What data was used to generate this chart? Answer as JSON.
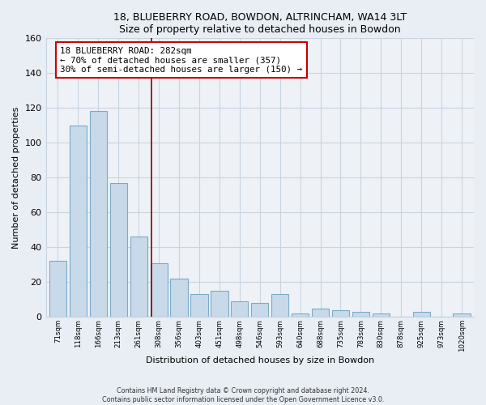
{
  "title1": "18, BLUEBERRY ROAD, BOWDON, ALTRINCHAM, WA14 3LT",
  "title2": "Size of property relative to detached houses in Bowdon",
  "xlabel": "Distribution of detached houses by size in Bowdon",
  "ylabel": "Number of detached properties",
  "bar_labels": [
    "71sqm",
    "118sqm",
    "166sqm",
    "213sqm",
    "261sqm",
    "308sqm",
    "356sqm",
    "403sqm",
    "451sqm",
    "498sqm",
    "546sqm",
    "593sqm",
    "640sqm",
    "688sqm",
    "735sqm",
    "783sqm",
    "830sqm",
    "878sqm",
    "925sqm",
    "973sqm",
    "1020sqm"
  ],
  "bar_values": [
    32,
    110,
    118,
    77,
    46,
    31,
    22,
    13,
    15,
    9,
    8,
    13,
    2,
    5,
    4,
    3,
    2,
    0,
    3,
    0,
    2
  ],
  "bar_color": "#c8daea",
  "bar_edge_color": "#7aaac8",
  "property_line_x": 4.62,
  "annotation_line1": "18 BLUEBERRY ROAD: 282sqm",
  "annotation_line2": "← 70% of detached houses are smaller (357)",
  "annotation_line3": "30% of semi-detached houses are larger (150) →",
  "ylim": [
    0,
    160
  ],
  "yticks": [
    0,
    20,
    40,
    60,
    80,
    100,
    120,
    140,
    160
  ],
  "footer1": "Contains HM Land Registry data © Crown copyright and database right 2024.",
  "footer2": "Contains public sector information licensed under the Open Government Licence v3.0.",
  "bg_color": "#e8eef4",
  "plot_bg_color": "#eef2f7",
  "grid_color": "#c8d4e0"
}
